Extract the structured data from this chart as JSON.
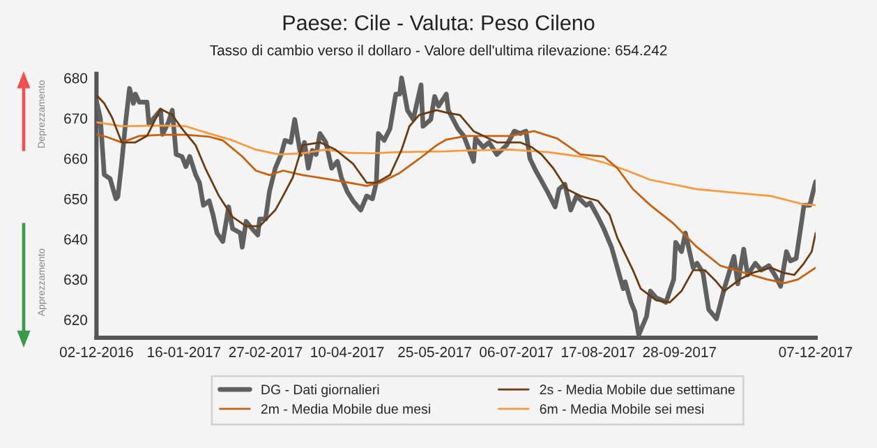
{
  "chart_data": {
    "type": "line",
    "title": "Paese: Cile - Valuta: Peso Cileno",
    "subtitle": "Tasso di cambio verso il dollaro - Valore dell'ultima rilevazione: 654.242",
    "annotations": [
      "Deprezzamento",
      "Apprezzamento"
    ],
    "xlim": [
      "2016-12-02",
      "2017-12-07"
    ],
    "xticks": [
      {
        "value": "2016-12-02",
        "label": "02-12-2016"
      },
      {
        "value": "2017-01-16",
        "label": "16-01-2017"
      },
      {
        "value": "2017-02-27",
        "label": "27-02-2017"
      },
      {
        "value": "2017-04-10",
        "label": "10-04-2017"
      },
      {
        "value": "2017-05-25",
        "label": "25-05-2017"
      },
      {
        "value": "2017-07-06",
        "label": "06-07-2017"
      },
      {
        "value": "2017-08-17",
        "label": "17-08-2017"
      },
      {
        "value": "2017-09-28",
        "label": "28-09-2017"
      },
      {
        "value": "2017-12-07",
        "label": "07-12-2017"
      }
    ],
    "ylim": [
      615.5,
      681
    ],
    "yticks": [
      620,
      630,
      640,
      650,
      660,
      670,
      680
    ],
    "grid": false,
    "legend": "bottom",
    "marker": "none",
    "line_style": "solid",
    "series": [
      {
        "name": "DG - Dati giornalieri",
        "color": "#606060",
        "x": [
          "2016-12-02",
          "2016-12-04",
          "2016-12-06",
          "2016-12-09",
          "2016-12-12",
          "2016-12-13",
          "2016-12-15",
          "2016-12-17",
          "2016-12-19",
          "2016-12-21",
          "2016-12-22",
          "2016-12-24",
          "2016-12-28",
          "2016-12-29",
          "2016-12-31",
          "2017-01-04",
          "2017-01-05",
          "2017-01-08",
          "2017-01-10",
          "2017-01-12",
          "2017-01-15",
          "2017-01-17",
          "2017-01-19",
          "2017-01-22",
          "2017-01-24",
          "2017-01-26",
          "2017-01-29",
          "2017-01-31",
          "2017-02-02",
          "2017-02-05",
          "2017-02-08",
          "2017-02-10",
          "2017-02-14",
          "2017-02-15",
          "2017-02-17",
          "2017-02-20",
          "2017-02-23",
          "2017-02-24",
          "2017-02-27",
          "2017-03-01",
          "2017-03-04",
          "2017-03-07",
          "2017-03-09",
          "2017-03-12",
          "2017-03-14",
          "2017-03-17",
          "2017-03-19",
          "2017-03-21",
          "2017-03-23",
          "2017-03-25",
          "2017-03-27",
          "2017-03-30",
          "2017-04-02",
          "2017-04-05",
          "2017-04-07",
          "2017-04-10",
          "2017-04-13",
          "2017-04-17",
          "2017-04-20",
          "2017-04-23",
          "2017-04-25",
          "2017-04-26",
          "2017-04-29",
          "2017-05-02",
          "2017-05-05",
          "2017-05-07",
          "2017-05-08",
          "2017-05-11",
          "2017-05-14",
          "2017-05-18",
          "2017-05-19",
          "2017-05-23",
          "2017-05-25",
          "2017-05-27",
          "2017-05-31",
          "2017-06-01",
          "2017-06-06",
          "2017-06-09",
          "2017-06-14",
          "2017-06-15",
          "2017-06-19",
          "2017-06-22",
          "2017-06-26",
          "2017-07-01",
          "2017-07-05",
          "2017-07-08",
          "2017-07-11",
          "2017-07-13",
          "2017-07-16",
          "2017-07-18",
          "2017-07-22",
          "2017-07-26",
          "2017-07-28",
          "2017-07-31",
          "2017-08-03",
          "2017-08-06",
          "2017-08-11",
          "2017-08-13",
          "2017-08-17",
          "2017-08-20",
          "2017-08-24",
          "2017-08-26",
          "2017-08-30",
          "2017-08-31",
          "2017-09-03",
          "2017-09-05",
          "2017-09-07",
          "2017-09-11",
          "2017-09-13",
          "2017-09-16",
          "2017-09-19",
          "2017-09-21",
          "2017-09-25",
          "2017-09-26",
          "2017-09-29",
          "2017-10-01",
          "2017-10-05",
          "2017-10-07",
          "2017-10-10",
          "2017-10-13",
          "2017-10-17",
          "2017-10-21",
          "2017-10-26",
          "2017-10-28",
          "2017-10-31",
          "2017-11-02",
          "2017-11-06",
          "2017-11-09",
          "2017-11-13",
          "2017-11-16",
          "2017-11-19",
          "2017-11-22",
          "2017-11-24",
          "2017-11-27",
          "2017-11-30",
          "2017-12-01",
          "2017-12-04",
          "2017-12-07"
        ],
        "values": [
          674.3,
          670,
          656,
          655,
          650,
          650.5,
          659,
          669,
          677.4,
          673.7,
          676,
          674,
          674,
          668.5,
          669.7,
          672,
          666,
          669,
          672,
          661,
          660.5,
          658,
          660.5,
          656,
          654,
          648.4,
          649.5,
          646,
          641.5,
          639.4,
          648,
          642.6,
          641.5,
          638,
          644.4,
          642.6,
          641,
          645,
          645,
          651.8,
          657.6,
          661,
          664.5,
          664,
          669.7,
          661,
          664,
          657.6,
          662,
          661,
          666.2,
          664,
          657.6,
          659.3,
          655.3,
          651.8,
          649.5,
          647.2,
          650.7,
          650,
          654,
          666.2,
          664.5,
          667.4,
          676,
          676,
          680,
          672,
          669.7,
          678.3,
          668,
          669.7,
          675.4,
          673,
          676,
          672,
          667.4,
          665.6,
          659.3,
          665,
          662.8,
          664,
          661,
          663.3,
          666.8,
          666.2,
          666.8,
          660,
          657,
          655.3,
          651.8,
          648,
          652.4,
          653.6,
          647.2,
          650.7,
          648.4,
          649,
          645.5,
          642.6,
          638,
          634.6,
          627.7,
          629.4,
          624.3,
          622,
          616.2,
          620.8,
          627.1,
          625.4,
          624.8,
          624.3,
          630,
          639.2,
          636.9,
          641.5,
          632.9,
          634,
          631.7,
          622.5,
          620.2,
          627.7,
          635.7,
          628.9,
          637.5,
          631.1,
          634,
          632.3,
          633.4,
          631.1,
          628.3,
          636.9,
          634.6,
          635.2,
          645,
          648.4,
          648.4,
          654.2
        ]
      },
      {
        "name": "2s - Media Mobile due settimane",
        "color": "#6b3a10",
        "x": [
          "2016-12-02",
          "2016-12-06",
          "2016-12-10",
          "2016-12-15",
          "2016-12-22",
          "2016-12-28",
          "2017-01-04",
          "2017-01-10",
          "2017-01-15",
          "2017-01-22",
          "2017-01-27",
          "2017-02-03",
          "2017-02-10",
          "2017-02-17",
          "2017-02-24",
          "2017-03-04",
          "2017-03-08",
          "2017-03-13",
          "2017-03-18",
          "2017-03-27",
          "2017-04-04",
          "2017-04-13",
          "2017-04-20",
          "2017-04-25",
          "2017-05-02",
          "2017-05-08",
          "2017-05-12",
          "2017-05-17",
          "2017-05-26",
          "2017-05-31",
          "2017-06-07",
          "2017-06-14",
          "2017-06-26",
          "2017-07-08",
          "2017-07-14",
          "2017-07-19",
          "2017-07-25",
          "2017-08-01",
          "2017-08-08",
          "2017-08-17",
          "2017-08-23",
          "2017-08-27",
          "2017-09-04",
          "2017-09-08",
          "2017-09-16",
          "2017-09-23",
          "2017-09-29",
          "2017-10-05",
          "2017-10-11",
          "2017-10-17",
          "2017-10-21",
          "2017-10-29",
          "2017-11-05",
          "2017-11-14",
          "2017-11-20",
          "2017-11-26",
          "2017-12-01",
          "2017-12-05",
          "2017-12-07"
        ],
        "values": [
          675.7,
          673.7,
          670.2,
          664,
          664,
          665.6,
          672.3,
          670.8,
          667.4,
          663.3,
          657.6,
          650.7,
          645.5,
          643.2,
          643.2,
          647.2,
          650.7,
          655.3,
          663.3,
          664,
          662.2,
          658.7,
          654,
          654,
          655.9,
          662.2,
          668,
          670.8,
          672,
          671.4,
          670.8,
          666.8,
          664,
          664,
          662.8,
          661,
          657.6,
          652.4,
          650.7,
          649.5,
          646,
          640.3,
          632.3,
          627.7,
          624.8,
          624.3,
          627.1,
          632.3,
          632.3,
          629.4,
          627.1,
          630,
          631.7,
          632.9,
          631.7,
          631.1,
          634,
          636.9,
          641.5
        ]
      },
      {
        "name": "2m - Media Mobile due mesi",
        "color": "#c8600f",
        "x": [
          "2016-12-02",
          "2016-12-07",
          "2016-12-15",
          "2016-12-24",
          "2017-01-05",
          "2017-01-17",
          "2017-01-29",
          "2017-02-05",
          "2017-02-15",
          "2017-02-22",
          "2017-03-01",
          "2017-03-08",
          "2017-03-18",
          "2017-03-30",
          "2017-04-11",
          "2017-04-20",
          "2017-04-27",
          "2017-05-07",
          "2017-05-17",
          "2017-05-26",
          "2017-05-31",
          "2017-06-10",
          "2017-07-03",
          "2017-07-15",
          "2017-07-27",
          "2017-08-08",
          "2017-08-20",
          "2017-08-27",
          "2017-09-04",
          "2017-09-13",
          "2017-09-25",
          "2017-10-07",
          "2017-10-19",
          "2017-10-31",
          "2017-11-12",
          "2017-11-21",
          "2017-11-28",
          "2017-12-07"
        ],
        "values": [
          666,
          665.4,
          664,
          665.6,
          665.9,
          665.9,
          665.4,
          664.5,
          660.5,
          657,
          655.9,
          657,
          655.9,
          655,
          654,
          653.2,
          654,
          656.4,
          659.9,
          663.3,
          664.7,
          665.6,
          665.6,
          666.8,
          665,
          661,
          660.5,
          657.6,
          652.4,
          648.4,
          643.8,
          638,
          633.4,
          631.7,
          630,
          629.1,
          630,
          632.9
        ]
      },
      {
        "name": "6m - Media Mobile sei mesi",
        "color": "#f79a3c",
        "x": [
          "2016-12-02",
          "2016-12-15",
          "2017-01-05",
          "2017-01-17",
          "2017-01-29",
          "2017-02-10",
          "2017-02-22",
          "2017-03-06",
          "2017-03-18",
          "2017-03-30",
          "2017-04-11",
          "2017-04-23",
          "2017-05-07",
          "2017-05-31",
          "2017-06-10",
          "2017-07-03",
          "2017-07-22",
          "2017-08-08",
          "2017-08-20",
          "2017-09-01",
          "2017-09-13",
          "2017-10-07",
          "2017-10-31",
          "2017-11-14",
          "2017-12-01",
          "2017-12-07"
        ],
        "values": [
          669,
          668,
          668.2,
          668,
          666.2,
          664.5,
          662.2,
          661,
          661.3,
          662.2,
          661.4,
          661.3,
          661.6,
          661.8,
          662,
          662.2,
          661.6,
          660.5,
          659,
          657,
          654.7,
          652.4,
          651.3,
          650.7,
          648.6,
          648.4
        ]
      }
    ]
  }
}
